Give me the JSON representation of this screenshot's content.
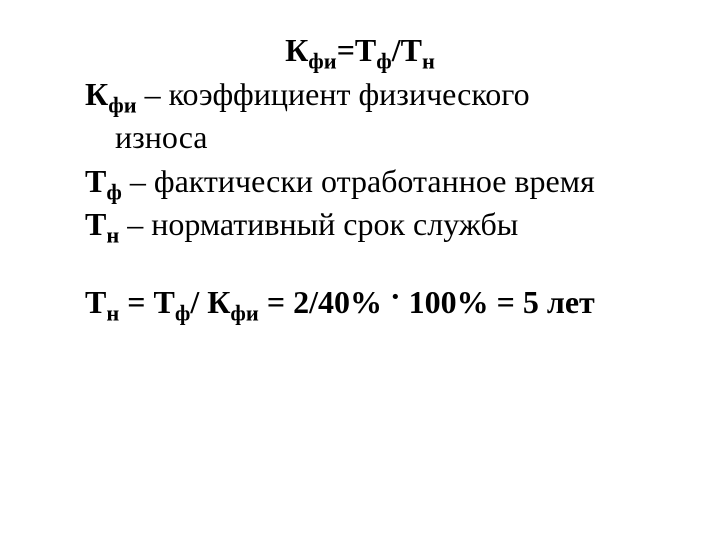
{
  "formula": {
    "lhs_main": "К",
    "lhs_sub": "фи",
    "eq": "=",
    "rhs1_main": "Т",
    "rhs1_sub": "ф",
    "slash": "/",
    "rhs2_main": "Т",
    "rhs2_sub": "н"
  },
  "def1": {
    "sym_main": "К",
    "sym_sub": "фи",
    "text": " – коэффициент физического",
    "text_cont": "износа"
  },
  "def2": {
    "sym_main": "Т",
    "sym_sub": "ф",
    "text": " – фактически отработанное время"
  },
  "def3": {
    "sym_main": "Т",
    "sym_sub": "н",
    "text": " – нормативный срок службы"
  },
  "result": {
    "p1_main": "Т",
    "p1_sub": "н",
    "eq1": " = ",
    "p2_main": "Т",
    "p2_sub": "ф",
    "slash": "/ ",
    "p3_main": "К",
    "p3_sub": "фи",
    "eq2": " = 2/40% ",
    "dot": "·",
    "tail": " 100% = 5 лет"
  },
  "style": {
    "background_color": "#ffffff",
    "text_color": "#000000",
    "font_family": "Times New Roman",
    "base_fontsize": 32,
    "sub_scale": 0.7,
    "bold_elements": [
      "formula",
      "result",
      "symbols"
    ]
  }
}
